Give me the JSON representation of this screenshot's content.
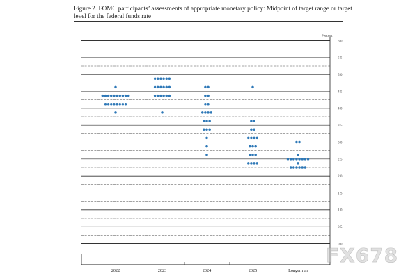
{
  "figure": {
    "title": "Figure 2.  FOMC participants’ assessments of appropriate monetary policy:  Midpoint of target range or target level for the federal funds rate"
  },
  "watermark": "FX678",
  "colors": {
    "dot": "#2e78b7",
    "axis": "#222222",
    "grid": "#333333"
  },
  "chart_data": {
    "type": "scatter",
    "unit_label": "Percent",
    "ylim": [
      0,
      6
    ],
    "yticks": [
      "0.0",
      "0.5",
      "1.0",
      "1.5",
      "2.0",
      "2.5",
      "3.0",
      "3.5",
      "4.0",
      "4.5",
      "5.0",
      "5.5",
      "6.0"
    ],
    "categories": [
      "2022",
      "2023",
      "2024",
      "2025",
      "Longer run"
    ],
    "separator_after_category": "2025",
    "series": [
      {
        "category": "2022",
        "dots": [
          {
            "y": 4.625,
            "n": 1
          },
          {
            "y": 4.375,
            "n": 10
          },
          {
            "y": 4.125,
            "n": 8
          },
          {
            "y": 3.875,
            "n": 1
          }
        ]
      },
      {
        "category": "2023",
        "dots": [
          {
            "y": 4.875,
            "n": 6
          },
          {
            "y": 4.625,
            "n": 6
          },
          {
            "y": 4.375,
            "n": 6
          },
          {
            "y": 3.875,
            "n": 1
          }
        ]
      },
      {
        "category": "2024",
        "dots": [
          {
            "y": 4.625,
            "n": 2
          },
          {
            "y": 4.375,
            "n": 2
          },
          {
            "y": 4.125,
            "n": 2
          },
          {
            "y": 3.875,
            "n": 4
          },
          {
            "y": 3.625,
            "n": 3
          },
          {
            "y": 3.375,
            "n": 3
          },
          {
            "y": 3.125,
            "n": 1
          },
          {
            "y": 2.875,
            "n": 1
          },
          {
            "y": 2.625,
            "n": 1
          }
        ]
      },
      {
        "category": "2025",
        "dots": [
          {
            "y": 4.625,
            "n": 1
          },
          {
            "y": 3.625,
            "n": 2
          },
          {
            "y": 3.375,
            "n": 2
          },
          {
            "y": 3.125,
            "n": 4
          },
          {
            "y": 2.875,
            "n": 3
          },
          {
            "y": 2.625,
            "n": 3
          },
          {
            "y": 2.375,
            "n": 4
          }
        ]
      },
      {
        "category": "Longer run",
        "dots": [
          {
            "y": 3.0,
            "n": 2
          },
          {
            "y": 2.625,
            "n": 1
          },
          {
            "y": 2.5,
            "n": 8
          },
          {
            "y": 2.375,
            "n": 1
          },
          {
            "y": 2.25,
            "n": 6
          }
        ]
      }
    ]
  }
}
